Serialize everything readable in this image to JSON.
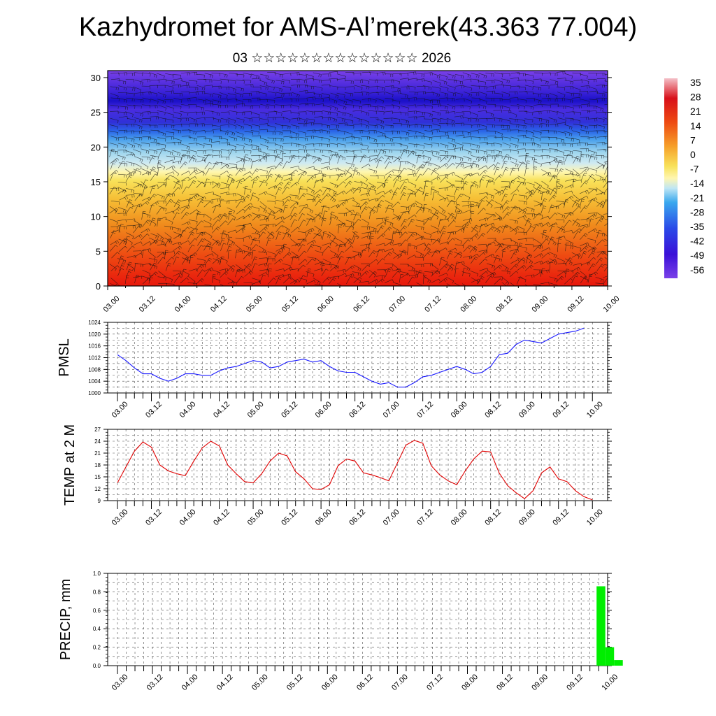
{
  "title": "Kazhydromet for AMS-Al’merek(43.363 77.004)",
  "subtitle": "03 ☆☆☆☆☆☆☆☆☆☆☆☆☆☆ 2026",
  "chart_data": [
    {
      "type": "heatmap",
      "name": "temperature-wind-cross-section",
      "xlabel": "",
      "ylabel": "",
      "x_ticks": [
        "03.00",
        "03.12",
        "04.00",
        "04.12",
        "05.00",
        "05.12",
        "06.00",
        "06.12",
        "07.00",
        "07.12",
        "08.00",
        "08.12",
        "09.00",
        "09.12",
        "10.00"
      ],
      "y_ticks": [
        0,
        5,
        10,
        15,
        20,
        25,
        30
      ],
      "ylim": [
        0,
        31
      ],
      "colorbar_labels": [
        "35",
        "28",
        "21",
        "14",
        "7",
        "0",
        "-7",
        "-14",
        "-21",
        "-28",
        "-35",
        "-42",
        "-49",
        "-56"
      ],
      "colors": {
        "warm_surface": "#e8160c",
        "orange": "#f08a1c",
        "yellow": "#f8e25a",
        "light_blue": "#9fd6ee",
        "blue": "#2a64e8",
        "deep_blue": "#1a10c8",
        "violet": "#7a40e8"
      },
      "warm_cores_x": [
        "03.12",
        "04.12",
        "05.12",
        "07.00",
        "07.12",
        "08.12"
      ]
    },
    {
      "type": "line",
      "name": "pmsl",
      "ylabel": "PMSL",
      "ylim": [
        1000,
        1024
      ],
      "y_ticks": [
        1000,
        1004,
        1008,
        1012,
        1016,
        1020,
        1024
      ],
      "x_ticks": [
        "03.00",
        "03.12",
        "04.00",
        "04.12",
        "05.00",
        "05.12",
        "06.00",
        "06.12",
        "07.00",
        "07.12",
        "08.00",
        "08.12",
        "09.00",
        "09.12",
        "10.00"
      ],
      "color": "#1a1aff",
      "values": [
        1013,
        1011,
        1008.5,
        1006.5,
        1006.5,
        1005,
        1004,
        1005,
        1006.5,
        1006.5,
        1006,
        1006,
        1007.5,
        1008.5,
        1009,
        1010,
        1011,
        1010.5,
        1008.5,
        1009,
        1010.5,
        1011,
        1011.5,
        1010.5,
        1011,
        1009,
        1007.5,
        1007,
        1007,
        1005.5,
        1004,
        1003,
        1003.5,
        1002,
        1002,
        1003.5,
        1005.5,
        1006,
        1007,
        1008,
        1009,
        1008,
        1006.5,
        1007,
        1009,
        1013,
        1013.5,
        1016.5,
        1018,
        1017.5,
        1017,
        1018.5,
        1020,
        1020.5,
        1021,
        1022
      ]
    },
    {
      "type": "line",
      "name": "temp-2m",
      "ylabel": "TEMP at 2 M",
      "ylim": [
        9,
        27
      ],
      "y_ticks": [
        9,
        12,
        15,
        18,
        21,
        24,
        27
      ],
      "x_ticks": [
        "03.00",
        "03.12",
        "04.00",
        "04.12",
        "05.00",
        "05.12",
        "06.00",
        "06.12",
        "07.00",
        "07.12",
        "08.00",
        "08.12",
        "09.00",
        "09.12",
        "10.00"
      ],
      "color": "#e00000",
      "values": [
        13.5,
        17.5,
        21.5,
        23.8,
        22.5,
        18,
        16.5,
        15.8,
        15.3,
        19,
        22.3,
        24,
        22.8,
        18,
        15.8,
        13.8,
        13.5,
        15.8,
        19,
        21,
        20.3,
        16.3,
        14.5,
        12,
        11.8,
        13,
        17.8,
        19.5,
        19,
        16,
        15.5,
        14.8,
        14,
        18.5,
        23,
        24.2,
        23.5,
        17.8,
        15.5,
        14,
        13,
        16.5,
        19.5,
        21.5,
        21.3,
        16,
        12.8,
        11,
        9.5,
        11.5,
        16,
        17.5,
        14.5,
        13.8,
        11.5,
        10,
        9.2
      ]
    },
    {
      "type": "bar",
      "name": "precip",
      "ylabel": "PRECIP, mm",
      "ylim": [
        0,
        1.0
      ],
      "y_ticks": [
        "0.0",
        "0.2",
        "0.4",
        "0.6",
        "0.8",
        "1.0"
      ],
      "x_ticks": [
        "03.00",
        "03.12",
        "04.00",
        "04.12",
        "05.00",
        "05.12",
        "06.00",
        "06.12",
        "07.00",
        "07.12",
        "08.00",
        "08.12",
        "09.00",
        "09.12",
        "10.00"
      ],
      "color": "#00ee00",
      "bars": [
        {
          "x_index": 55,
          "value": 0.86
        },
        {
          "x_index": 56,
          "value": 0.2
        },
        {
          "x_index": 57,
          "value": 0.06
        }
      ]
    }
  ]
}
